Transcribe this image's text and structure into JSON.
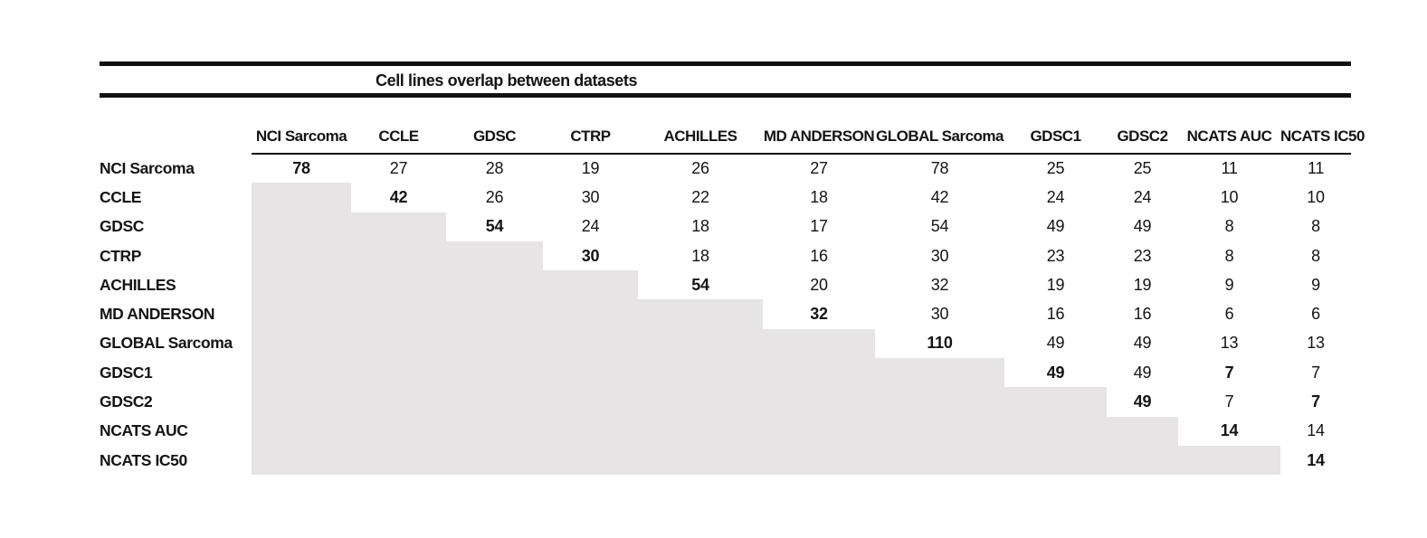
{
  "title": "Cell lines overlap between datasets",
  "colors": {
    "shaded_cell": "#e6e4e4",
    "rule": "#111111",
    "text": "#141414",
    "background": "#ffffff"
  },
  "chart_data": {
    "type": "table",
    "title": "Cell lines overlap between datasets",
    "col_labels": [
      "NCI Sarcoma",
      "CCLE",
      "GDSC",
      "CTRP",
      "ACHILLES",
      "MD ANDERSON",
      "GLOBAL Sarcoma",
      "GDSC1",
      "GDSC2",
      "NCATS AUC",
      "NCATS IC50"
    ],
    "row_labels": [
      "NCI Sarcoma",
      "CCLE",
      "GDSC",
      "CTRP",
      "ACHILLES",
      "MD ANDERSON",
      "GLOBAL Sarcoma",
      "GDSC1",
      "GDSC2",
      "NCATS AUC",
      "NCATS IC50"
    ],
    "matrix": [
      [
        78,
        27,
        28,
        19,
        26,
        27,
        78,
        25,
        25,
        11,
        11
      ],
      [
        null,
        42,
        26,
        30,
        22,
        18,
        42,
        24,
        24,
        10,
        10
      ],
      [
        null,
        null,
        54,
        24,
        18,
        17,
        54,
        49,
        49,
        8,
        8
      ],
      [
        null,
        null,
        null,
        30,
        18,
        16,
        30,
        23,
        23,
        8,
        8
      ],
      [
        null,
        null,
        null,
        null,
        54,
        20,
        32,
        19,
        19,
        9,
        9
      ],
      [
        null,
        null,
        null,
        null,
        null,
        32,
        30,
        16,
        16,
        6,
        6
      ],
      [
        null,
        null,
        null,
        null,
        null,
        null,
        110,
        49,
        49,
        13,
        13
      ],
      [
        null,
        null,
        null,
        null,
        null,
        null,
        null,
        49,
        49,
        7,
        7
      ],
      [
        null,
        null,
        null,
        null,
        null,
        null,
        null,
        null,
        49,
        7,
        7
      ],
      [
        null,
        null,
        null,
        null,
        null,
        null,
        null,
        null,
        null,
        14,
        14
      ],
      [
        null,
        null,
        null,
        null,
        null,
        null,
        null,
        null,
        null,
        null,
        14
      ]
    ],
    "bold_cells": "diagonal",
    "extra_bold_cells": [
      [
        7,
        9
      ],
      [
        8,
        10
      ]
    ],
    "shading": "lower-triangle shaded gray, values blank",
    "legend_position": "none",
    "grid": "horizontal rules only"
  }
}
